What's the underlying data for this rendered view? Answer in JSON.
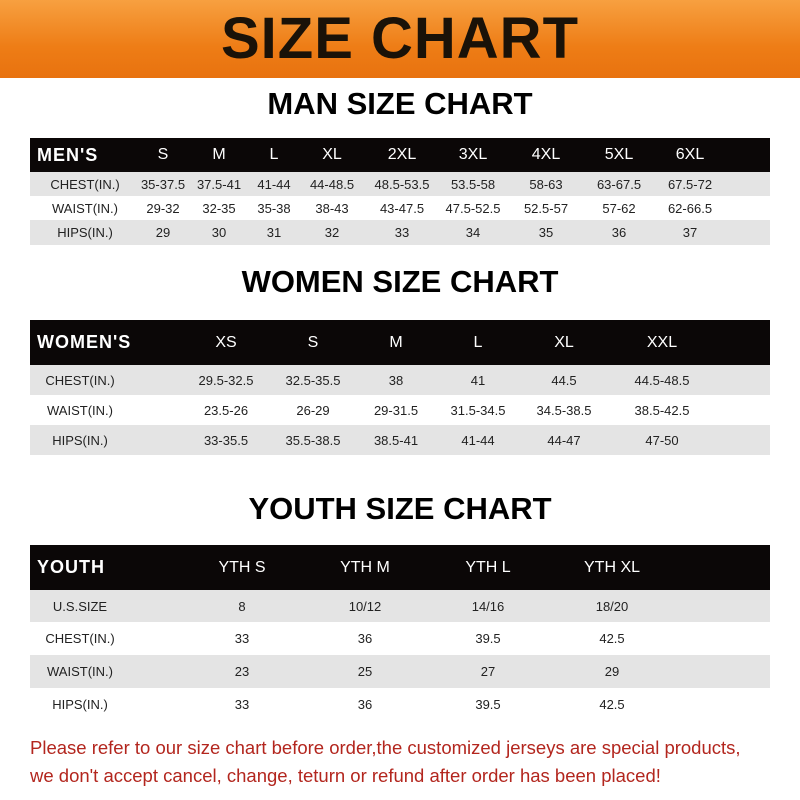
{
  "banner_title": "SIZE CHART",
  "men": {
    "title": "MAN SIZE CHART",
    "header": [
      "MEN'S",
      "S",
      "M",
      "L",
      "XL",
      "2XL",
      "3XL",
      "4XL",
      "5XL",
      "6XL"
    ],
    "rows": [
      [
        "CHEST(IN.)",
        "35-37.5",
        "37.5-41",
        "41-44",
        "44-48.5",
        "48.5-53.5",
        "53.5-58",
        "58-63",
        "63-67.5",
        "67.5-72"
      ],
      [
        "WAIST(IN.)",
        "29-32",
        "32-35",
        "35-38",
        "38-43",
        "43-47.5",
        "47.5-52.5",
        "52.5-57",
        "57-62",
        "62-66.5"
      ],
      [
        "HIPS(IN.)",
        "29",
        "30",
        "31",
        "32",
        "33",
        "34",
        "35",
        "36",
        "37"
      ]
    ]
  },
  "women": {
    "title": "WOMEN SIZE CHART",
    "header": [
      "WOMEN'S",
      "XS",
      "S",
      "M",
      "L",
      "XL",
      "XXL"
    ],
    "rows": [
      [
        "CHEST(IN.)",
        "29.5-32.5",
        "32.5-35.5",
        "38",
        "41",
        "44.5",
        "44.5-48.5"
      ],
      [
        "WAIST(IN.)",
        "23.5-26",
        "26-29",
        "29-31.5",
        "31.5-34.5",
        "34.5-38.5",
        "38.5-42.5"
      ],
      [
        "HIPS(IN.)",
        "33-35.5",
        "35.5-38.5",
        "38.5-41",
        "41-44",
        "44-47",
        "47-50"
      ]
    ]
  },
  "youth": {
    "title": "YOUTH SIZE CHART",
    "header": [
      "YOUTH",
      "YTH S",
      "YTH M",
      "YTH L",
      "YTH XL"
    ],
    "rows": [
      [
        "U.S.SIZE",
        "8",
        "10/12",
        "14/16",
        "18/20"
      ],
      [
        "CHEST(IN.)",
        "33",
        "36",
        "39.5",
        "42.5"
      ],
      [
        "WAIST(IN.)",
        "23",
        "25",
        "27",
        "29"
      ],
      [
        "HIPS(IN.)",
        "33",
        "36",
        "39.5",
        "42.5"
      ]
    ]
  },
  "notice": {
    "line1": "Please refer to our size chart before order,the customized jerseys are special products,",
    "line2": "we don't accept cancel, change, teturn or refund after order has been placed!"
  },
  "colors": {
    "banner": "#ee7d16",
    "header_row": "#0b0707",
    "notice": "#b3261e"
  }
}
